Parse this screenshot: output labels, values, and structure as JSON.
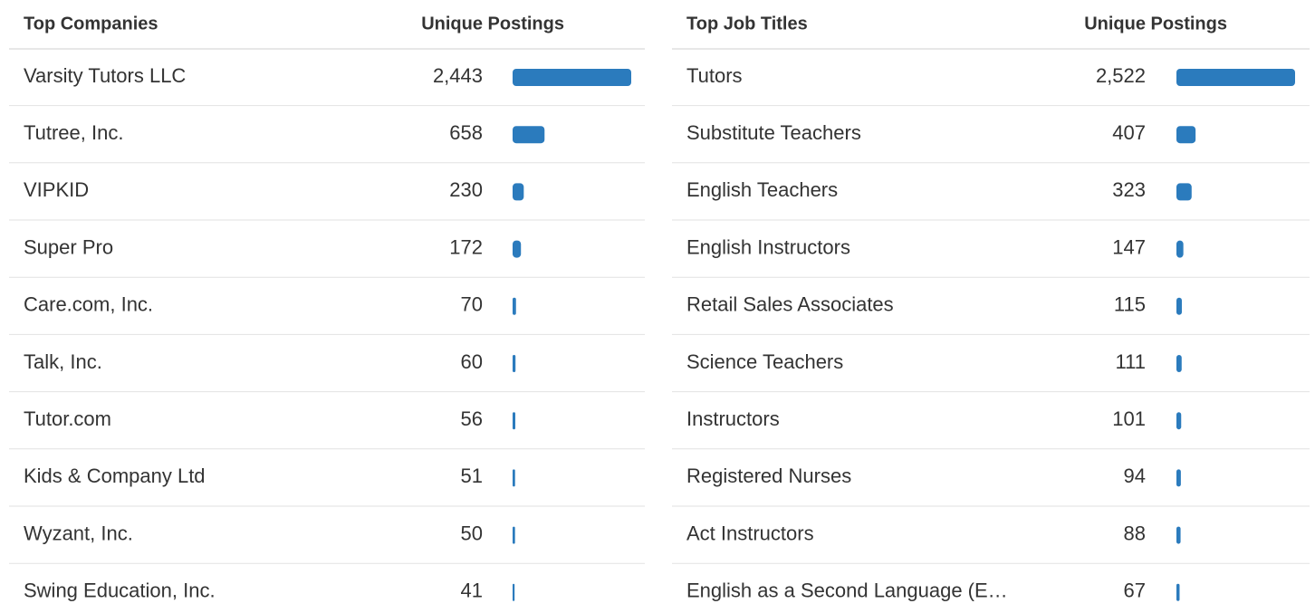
{
  "tables": [
    {
      "header": {
        "name": "Top Companies",
        "value": "Unique Postings"
      },
      "rows": [
        {
          "name": "Varsity Tutors LLC",
          "value": 2443,
          "label": "2,443"
        },
        {
          "name": "Tutree, Inc.",
          "value": 658,
          "label": "658"
        },
        {
          "name": "VIPKID",
          "value": 230,
          "label": "230"
        },
        {
          "name": "Super Pro",
          "value": 172,
          "label": "172"
        },
        {
          "name": "Care.com, Inc.",
          "value": 70,
          "label": "70"
        },
        {
          "name": "Talk, Inc.",
          "value": 60,
          "label": "60"
        },
        {
          "name": "Tutor.com",
          "value": 56,
          "label": "56"
        },
        {
          "name": "Kids & Company Ltd",
          "value": 51,
          "label": "51"
        },
        {
          "name": "Wyzant, Inc.",
          "value": 50,
          "label": "50"
        },
        {
          "name": "Swing Education, Inc.",
          "value": 41,
          "label": "41"
        }
      ],
      "color": "#2b7bbd"
    },
    {
      "header": {
        "name": "Top Job Titles",
        "value": "Unique Postings"
      },
      "rows": [
        {
          "name": "Tutors",
          "value": 2522,
          "label": "2,522"
        },
        {
          "name": "Substitute Teachers",
          "value": 407,
          "label": "407"
        },
        {
          "name": "English Teachers",
          "value": 323,
          "label": "323"
        },
        {
          "name": "English Instructors",
          "value": 147,
          "label": "147"
        },
        {
          "name": "Retail Sales Associates",
          "value": 115,
          "label": "115"
        },
        {
          "name": "Science Teachers",
          "value": 111,
          "label": "111"
        },
        {
          "name": "Instructors",
          "value": 101,
          "label": "101"
        },
        {
          "name": "Registered Nurses",
          "value": 94,
          "label": "94"
        },
        {
          "name": "Act Instructors",
          "value": 88,
          "label": "88"
        },
        {
          "name": "English as a Second Language (E…",
          "value": 67,
          "label": "67"
        }
      ],
      "color": "#2b7bbd"
    }
  ]
}
